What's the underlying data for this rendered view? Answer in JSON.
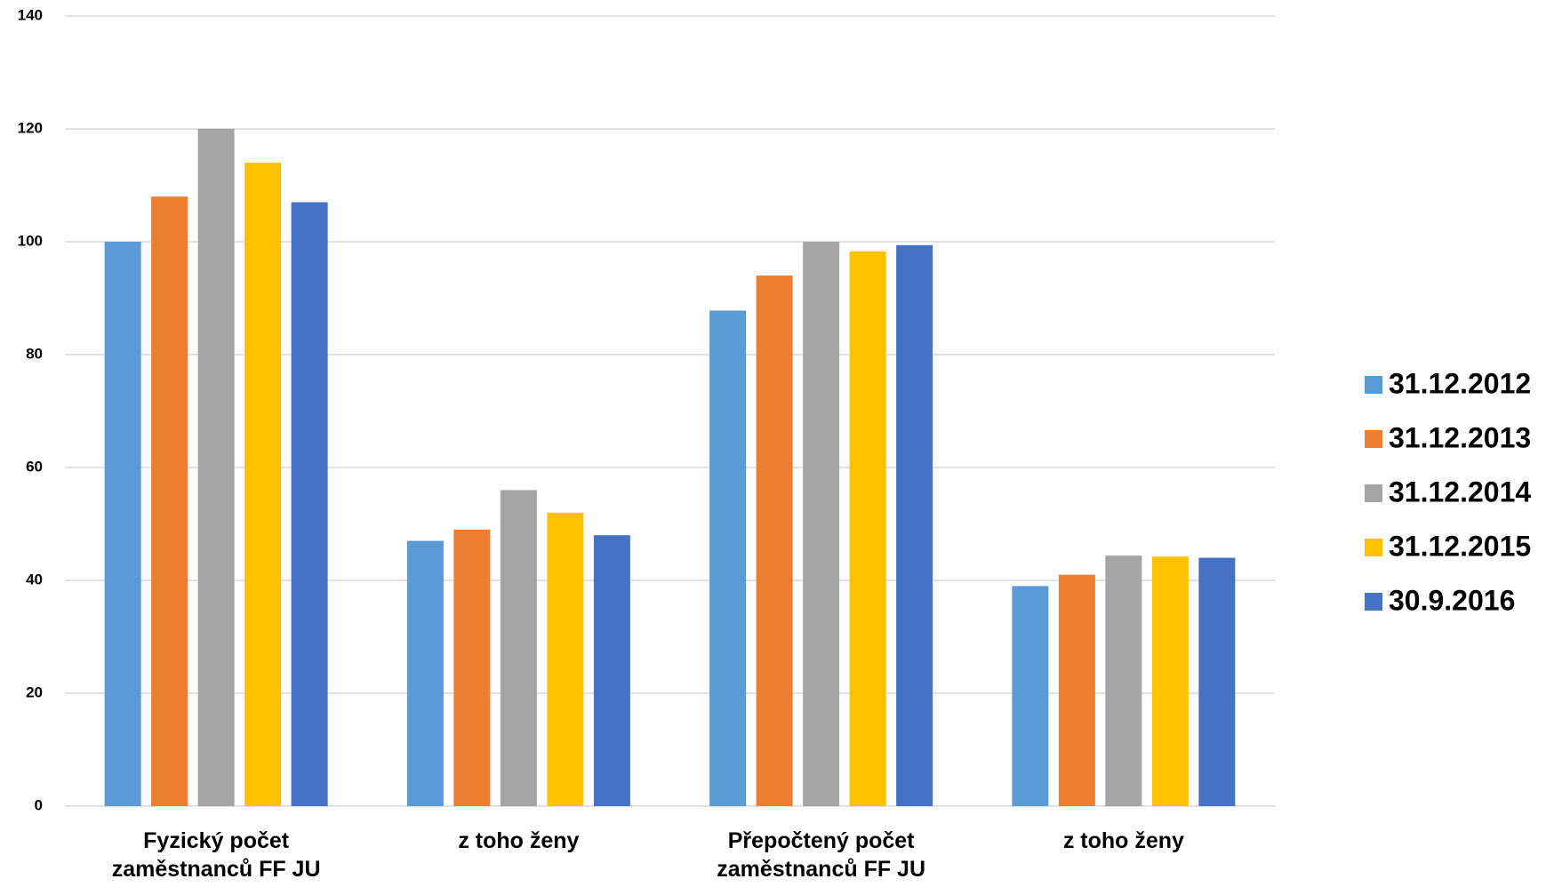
{
  "chart_data": {
    "type": "bar",
    "categories": [
      "Fyzický počet zaměstnanců FF JU",
      "z toho ženy",
      "Přepočtený počet zaměstnanců FF JU",
      "z toho ženy"
    ],
    "series": [
      {
        "name": "31.12.2012",
        "color": "#5b9bd5",
        "values": [
          100,
          47,
          87.8,
          39
        ]
      },
      {
        "name": "31.12.2013",
        "color": "#ed7d31",
        "values": [
          108,
          49,
          94,
          41
        ]
      },
      {
        "name": "31.12.2014",
        "color": "#a5a5a5",
        "values": [
          120,
          56,
          100,
          44.4
        ]
      },
      {
        "name": "31.12.2015",
        "color": "#ffc000",
        "values": [
          114,
          52,
          98.3,
          44.2
        ]
      },
      {
        "name": "30.9.2016",
        "color": "#4472c4",
        "values": [
          107,
          48,
          99.4,
          44
        ]
      }
    ],
    "ylim": [
      0,
      140
    ],
    "yticks": [
      0,
      20,
      40,
      60,
      80,
      100,
      120,
      140
    ],
    "grid": true,
    "legend": "right"
  }
}
